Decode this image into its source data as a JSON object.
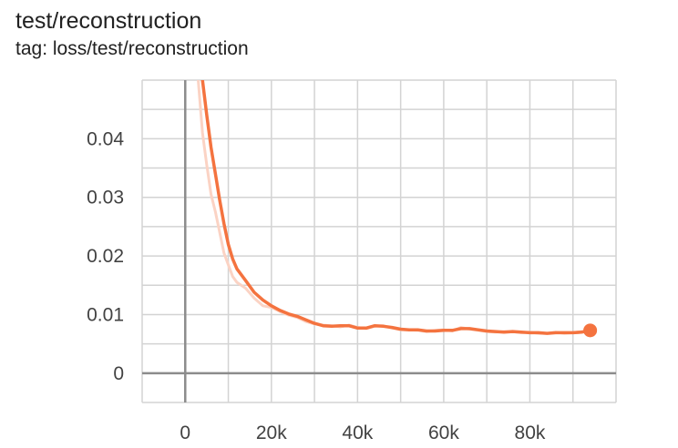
{
  "card": {
    "title": "test/reconstruction",
    "tag": "tag: loss/test/reconstruction"
  },
  "colors": {
    "line": "#f4733f",
    "raw_line": "#fbd3c4",
    "grid": "#d3d3d3",
    "axis": "#8c8c8c",
    "text": "#424242"
  },
  "chart_data": {
    "type": "line",
    "title": "test/reconstruction",
    "xlabel": "",
    "ylabel": "",
    "xlim": [
      -10000,
      100000
    ],
    "ylim": [
      -0.005,
      0.05
    ],
    "x_ticks": [
      0,
      20000,
      40000,
      60000,
      80000
    ],
    "x_tick_labels": [
      "0",
      "20k",
      "40k",
      "60k",
      "80k"
    ],
    "y_ticks": [
      0,
      0.01,
      0.02,
      0.03,
      0.04
    ],
    "y_tick_labels": [
      "0",
      "0.01",
      "0.02",
      "0.03",
      "0.04"
    ],
    "grid": true,
    "series": [
      {
        "role": "smoothed",
        "x": [
          4000,
          5000,
          6000,
          7000,
          8000,
          9000,
          10000,
          11000,
          12000,
          14000,
          16000,
          18000,
          20000,
          22000,
          24000,
          26000,
          28000,
          30000,
          32000,
          34000,
          36000,
          38000,
          40000,
          42000,
          44000,
          46000,
          48000,
          50000,
          52000,
          54000,
          56000,
          58000,
          60000,
          62000,
          64000,
          66000,
          68000,
          70000,
          72000,
          74000,
          76000,
          78000,
          80000,
          82000,
          84000,
          86000,
          88000,
          90000,
          92000,
          94000
        ],
        "y": [
          0.05,
          0.044,
          0.0385,
          0.034,
          0.0295,
          0.0255,
          0.022,
          0.0195,
          0.0178,
          0.0158,
          0.0138,
          0.0125,
          0.0115,
          0.0107,
          0.0101,
          0.0097,
          0.0091,
          0.0085,
          0.0081,
          0.008,
          0.0081,
          0.0081,
          0.0077,
          0.0077,
          0.0081,
          0.008,
          0.0078,
          0.0075,
          0.0074,
          0.0074,
          0.0072,
          0.0072,
          0.0073,
          0.0073,
          0.0076,
          0.0076,
          0.0074,
          0.0072,
          0.0071,
          0.007,
          0.0071,
          0.007,
          0.0069,
          0.0069,
          0.0068,
          0.0069,
          0.0069,
          0.0069,
          0.007,
          0.0073
        ]
      },
      {
        "role": "raw",
        "x": [
          3000,
          4000,
          5000,
          6000,
          7000,
          8000,
          9000,
          10000,
          11000,
          12000,
          14000,
          16000,
          18000,
          20000,
          22000,
          24000,
          26000,
          28000,
          30000,
          32000,
          34000,
          36000,
          38000,
          40000,
          42000,
          44000,
          46000,
          48000,
          50000,
          52000,
          54000,
          56000,
          58000,
          60000,
          62000,
          64000,
          66000,
          68000,
          70000,
          72000,
          74000,
          76000,
          78000,
          80000,
          82000,
          84000,
          86000,
          88000,
          90000,
          92000,
          94000
        ],
        "y": [
          0.05,
          0.041,
          0.0355,
          0.0305,
          0.0275,
          0.024,
          0.0205,
          0.0185,
          0.0165,
          0.0155,
          0.0145,
          0.0128,
          0.0115,
          0.0112,
          0.0105,
          0.0099,
          0.0095,
          0.0088,
          0.0084,
          0.0082,
          0.0081,
          0.0079,
          0.0082,
          0.0078,
          0.0076,
          0.008,
          0.0081,
          0.0077,
          0.0074,
          0.0074,
          0.0073,
          0.0071,
          0.0073,
          0.0074,
          0.0072,
          0.0078,
          0.0075,
          0.0073,
          0.0071,
          0.007,
          0.0071,
          0.0071,
          0.0069,
          0.007,
          0.0068,
          0.0068,
          0.007,
          0.0068,
          0.0069,
          0.0071,
          0.0073
        ]
      }
    ],
    "last_point": {
      "x": 94000,
      "y": 0.0073
    }
  }
}
